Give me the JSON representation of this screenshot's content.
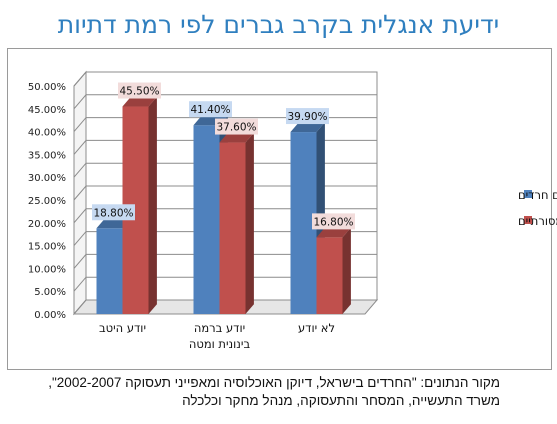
{
  "title": "ידיעת אנגלית בקרב גברים לפי רמת דתיות",
  "source_line1": "מקור הנתונים: \"החרדים בישראל, דיוקן האוכלוסיה ומאפייני תעסוקה 2002-2007\",",
  "source_line2": "משרד התעשייה, המסחר והתעסוקה, מנהל מחקר וכלכלה",
  "chart_data": {
    "type": "bar",
    "categories": [
      "יודע היטב",
      "יודע ברמה בינונית ומטה",
      "לא יודע"
    ],
    "category_lines": [
      [
        "יודע היטב"
      ],
      [
        "יודע ברמה",
        "בינונית ומטה"
      ],
      [
        "לא יודע"
      ]
    ],
    "series": [
      {
        "name": "גברים חרדים",
        "values": [
          18.8,
          41.4,
          39.9
        ],
        "color": "#4f81bd",
        "label_bg": "#c6d9f1"
      },
      {
        "name": "גברים חילונים ומסורתיים",
        "values": [
          45.5,
          37.6,
          16.8
        ],
        "color": "#c0504d",
        "label_bg": "#f2dcdb"
      }
    ],
    "data_labels": [
      [
        "18.80%",
        "41.40%",
        "39.90%"
      ],
      [
        "45.50%",
        "37.60%",
        "16.80%"
      ]
    ],
    "yticks": [
      "0.00%",
      "5.00%",
      "10.00%",
      "15.00%",
      "20.00%",
      "25.00%",
      "30.00%",
      "35.00%",
      "40.00%",
      "45.00%",
      "50.00%"
    ],
    "ylim": [
      0,
      50
    ],
    "grid": true,
    "legend": "right"
  }
}
